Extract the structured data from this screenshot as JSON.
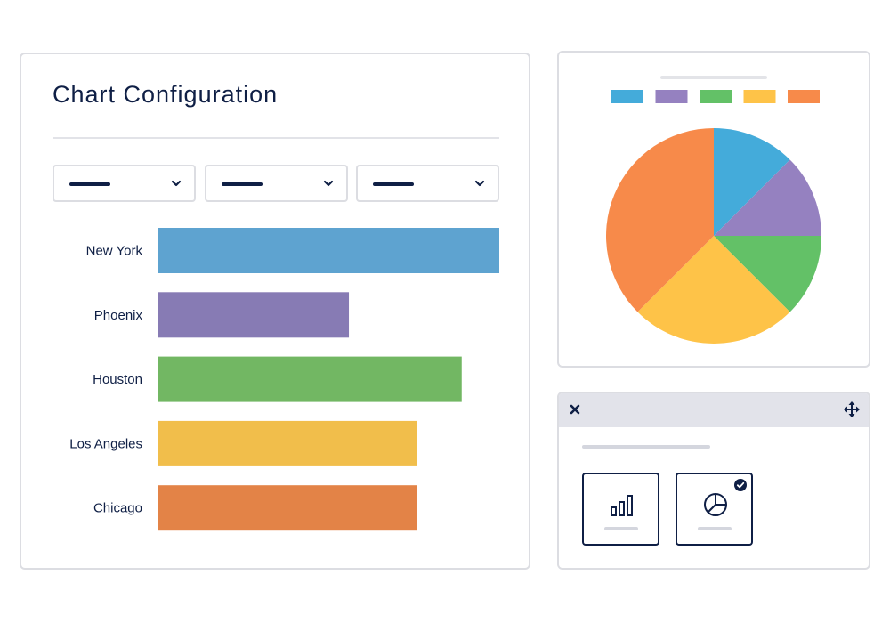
{
  "config_panel": {
    "title": "Chart Configuration",
    "dropdowns": [
      {
        "selected": ""
      },
      {
        "selected": ""
      },
      {
        "selected": ""
      }
    ]
  },
  "chart_data": [
    {
      "type": "bar",
      "orientation": "horizontal",
      "categories": [
        "New York",
        "Phoenix",
        "Houston",
        "Los Angeles",
        "Chicago"
      ],
      "values": [
        100,
        56,
        89,
        76,
        76
      ],
      "colors": [
        "#5ea3d0",
        "#877bb4",
        "#72b763",
        "#f1be4b",
        "#e38347"
      ],
      "xlim": [
        0,
        100
      ],
      "grid": false,
      "title": "",
      "xlabel": "",
      "ylabel": ""
    },
    {
      "type": "pie",
      "values": [
        12.5,
        12.5,
        12.5,
        25,
        37.5
      ],
      "colors": [
        "#44abda",
        "#9581c0",
        "#63c167",
        "#fec348",
        "#f78a4a"
      ],
      "legend": "top",
      "title": ""
    }
  ],
  "chart_type_panel": {
    "icons": {
      "close": "close-icon",
      "move": "move-icon"
    },
    "options": [
      {
        "icon": "bar-chart-icon",
        "selected": false
      },
      {
        "icon": "pie-chart-icon",
        "selected": true
      }
    ]
  },
  "colors": {
    "text": "#0f1f45",
    "border": "#dcdde2",
    "header": "#e2e3ea"
  }
}
